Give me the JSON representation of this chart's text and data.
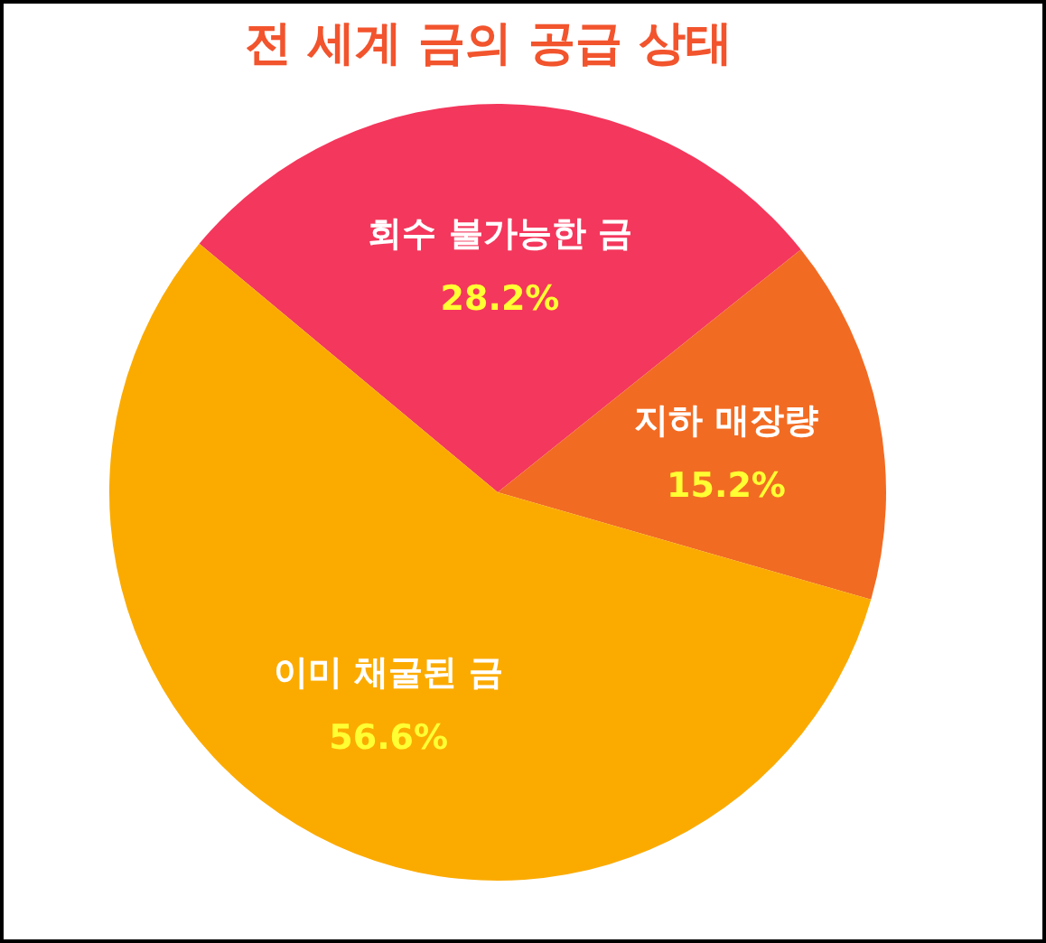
{
  "chart_data": {
    "type": "pie",
    "title": "전 세계 금의 공급 상태",
    "categories": [
      "회수 불가능한 금",
      "지하 매장량",
      "이미 채굴된 금"
    ],
    "values": [
      28.2,
      15.2,
      56.6
    ],
    "colors": [
      "#f4375c",
      "#f26b22",
      "#fbab00"
    ],
    "value_labels": [
      "28.2%",
      "15.2%",
      "56.6%"
    ]
  }
}
